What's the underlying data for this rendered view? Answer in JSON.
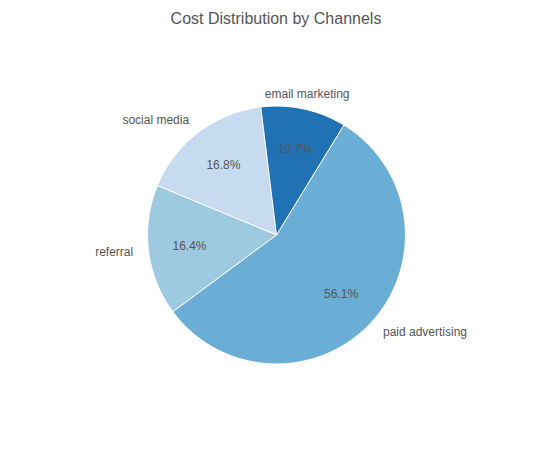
{
  "chart_data": {
    "type": "pie",
    "title": "Cost Distribution by Channels",
    "categories": [
      "social media",
      "referral",
      "paid advertising",
      "email marketing"
    ],
    "values": [
      16.8,
      16.4,
      56.1,
      10.7
    ],
    "value_labels": [
      "16.8%",
      "16.4%",
      "56.1%",
      "10.7%"
    ],
    "colors": [
      "#c6dbef",
      "#9ecae1",
      "#6aaed6",
      "#2171b5"
    ],
    "data_labels": true
  }
}
